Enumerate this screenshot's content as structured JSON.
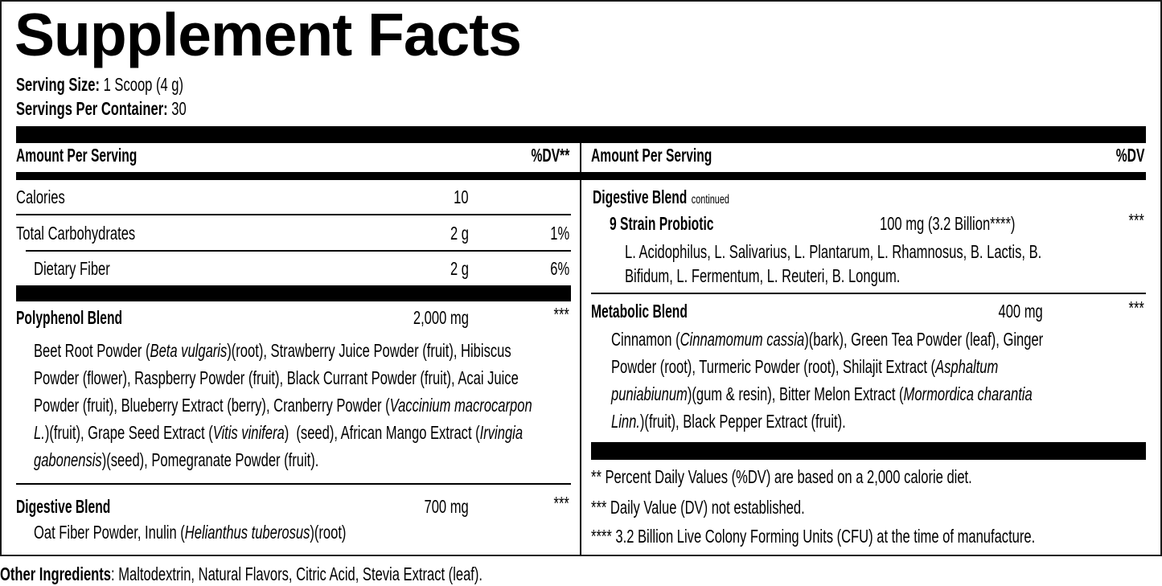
{
  "title": "Supplement Facts",
  "serving": {
    "size_label": "Serving Size:",
    "size_value": "1 Scoop (4 g)",
    "per_container_label": "Servings Per Container:",
    "per_container_value": "30"
  },
  "left": {
    "header": {
      "amount": "Amount Per Serving",
      "dv": "%DV**"
    },
    "rows": [
      {
        "name": "Calories",
        "amount": "10",
        "dv": ""
      },
      {
        "name": "Total Carbohydrates",
        "amount": "2 g",
        "dv": "1%"
      },
      {
        "name": "Dietary Fiber",
        "amount": "2 g",
        "dv": "6%"
      }
    ],
    "polyphenol": {
      "name": "Polyphenol Blend",
      "amount": "2,000 mg",
      "dv": "***",
      "lines": [
        [
          {
            "t": "Beet Root Powder ("
          },
          {
            "t": "Beta vulgaris",
            "i": true
          },
          {
            "t": ")(root), Strawberry Juice Powder (fruit), Hibiscus"
          }
        ],
        [
          {
            "t": "Powder (flower), Raspberry Powder (fruit), Black Currant Powder (fruit), Acai Juice"
          }
        ],
        [
          {
            "t": "Powder (fruit), Blueberry Extract (berry), Cranberry Powder ("
          },
          {
            "t": "Vaccinium macrocarpon",
            "i": true
          }
        ],
        [
          {
            "t": "L.",
            "i": true
          },
          {
            "t": ")(fruit), Grape Seed Extract ("
          },
          {
            "t": "Vitis vinifera",
            "i": true
          },
          {
            "t": ")  (seed), African Mango Extract ("
          },
          {
            "t": "Irvingia",
            "i": true
          }
        ],
        [
          {
            "t": "gabonensis",
            "i": true
          },
          {
            "t": ")(seed), Pomegranate Powder (fruit)."
          }
        ]
      ]
    },
    "digestive": {
      "name": "Digestive Blend",
      "amount": "700 mg",
      "dv": "***",
      "lines": [
        [
          {
            "t": "Oat Fiber Powder, Inulin ("
          },
          {
            "t": "Helianthus tuberosus",
            "i": true
          },
          {
            "t": ")(root)"
          }
        ]
      ]
    }
  },
  "right": {
    "header": {
      "amount": "Amount Per Serving",
      "dv": "%DV"
    },
    "digestive_continued": {
      "name": "Digestive Blend",
      "note": "continued"
    },
    "probiotic": {
      "name": "9 Strain Probiotic",
      "amount": "100 mg (3.2 Billion****)",
      "dv": "***",
      "lines": [
        [
          {
            "t": "L. Acidophilus, L. Salivarius, L. Plantarum, L. Rhamnosus, B. Lactis, B."
          }
        ],
        [
          {
            "t": "Bifidum, L. Fermentum, L. Reuteri, B. Longum."
          }
        ]
      ]
    },
    "metabolic": {
      "name": "Metabolic Blend",
      "amount": "400 mg",
      "dv": "***",
      "lines": [
        [
          {
            "t": "Cinnamon ("
          },
          {
            "t": "Cinnamomum cassia",
            "i": true
          },
          {
            "t": ")(bark), Green Tea Powder (leaf), Ginger"
          }
        ],
        [
          {
            "t": "Powder (root), Turmeric Powder (root), Shilajit Extract ("
          },
          {
            "t": "Asphaltum",
            "i": true
          }
        ],
        [
          {
            "t": "puniabiunum",
            "i": true
          },
          {
            "t": ")(gum & resin), Bitter Melon Extract ("
          },
          {
            "t": "Mormordica charantia",
            "i": true
          }
        ],
        [
          {
            "t": "Linn.",
            "i": true
          },
          {
            "t": ")(fruit), Black Pepper Extract (fruit)."
          }
        ]
      ]
    },
    "footnotes": [
      "** Percent Daily Values (%DV) are based on a 2,000 calorie diet.",
      "*** Daily Value (DV) not established.",
      "**** 3.2 Billion Live Colony Forming Units (CFU) at the time of manufacture."
    ]
  },
  "other_ingredients": {
    "label": "Other Ingredients",
    "value": ": Maltodextrin, Natural Flavors, Citric Acid, Stevia Extract (leaf)."
  }
}
